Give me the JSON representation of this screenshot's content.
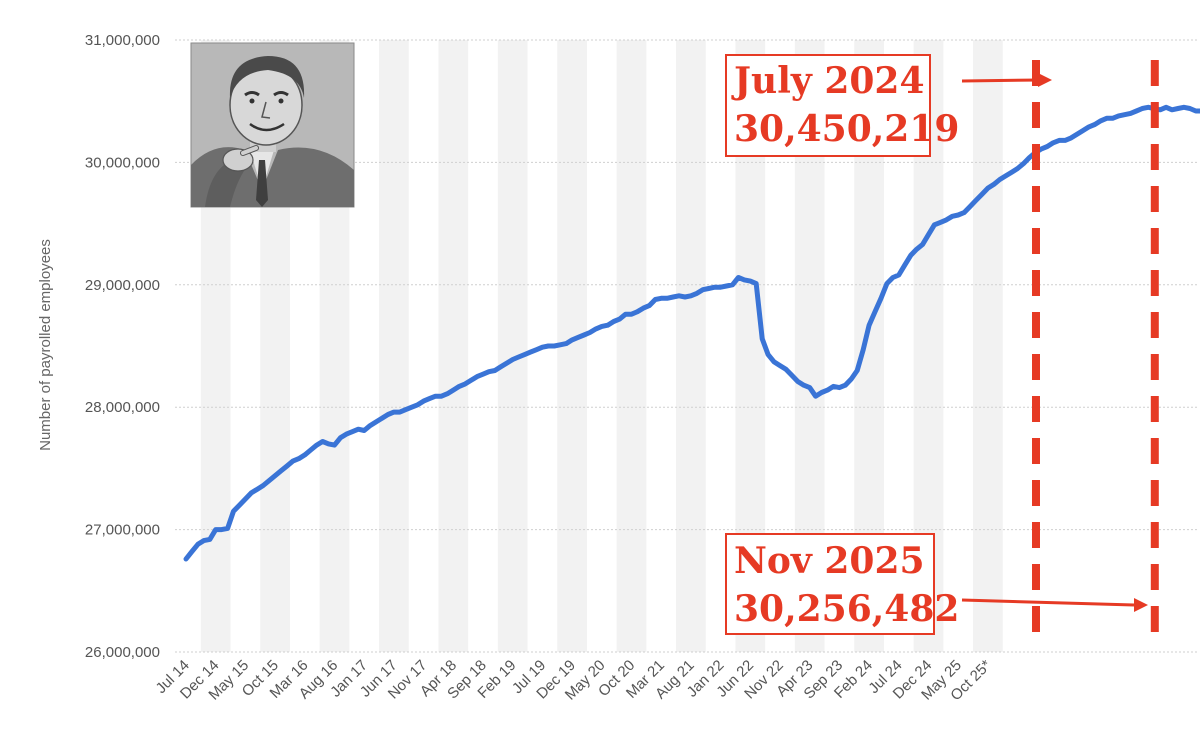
{
  "chart_data": {
    "type": "line",
    "ylabel": "Number of payrolled employees",
    "xlabel": "",
    "ylim": [
      26000000,
      31000000
    ],
    "yticks": [
      26000000,
      27000000,
      28000000,
      29000000,
      30000000,
      31000000
    ],
    "ytick_labels": [
      "26,000,000",
      "27,000,000",
      "28,000,000",
      "29,000,000",
      "30,000,000",
      "31,000,000"
    ],
    "x_start": "Jul 14",
    "x_tick_labels": [
      "Jul 14",
      "Dec 14",
      "May 15",
      "Oct 15",
      "Mar 16",
      "Aug 16",
      "Jan 17",
      "Jun 17",
      "Nov 17",
      "Apr 18",
      "Sep 18",
      "Feb 19",
      "Jul 19",
      "Dec 19",
      "May 20",
      "Oct 20",
      "Mar 21",
      "Aug 21",
      "Jan 22",
      "Jun 22",
      "Nov 22",
      "Apr 23",
      "Sep 23",
      "Feb 24",
      "Jul 24",
      "Dec 24",
      "May 25",
      "Oct 25*"
    ],
    "grid": true,
    "series": [
      {
        "color": "#3a74d6",
        "values": [
          26760000,
          26820000,
          26880000,
          26910000,
          26920000,
          27000000,
          27000000,
          27010000,
          27150000,
          27200000,
          27250000,
          27300000,
          27330000,
          27360000,
          27400000,
          27440000,
          27480000,
          27520000,
          27560000,
          27580000,
          27610000,
          27650000,
          27690000,
          27720000,
          27700000,
          27690000,
          27750000,
          27780000,
          27800000,
          27820000,
          27810000,
          27850000,
          27880000,
          27910000,
          27940000,
          27960000,
          27960000,
          27980000,
          28000000,
          28020000,
          28050000,
          28070000,
          28090000,
          28090000,
          28110000,
          28140000,
          28170000,
          28190000,
          28220000,
          28250000,
          28270000,
          28290000,
          28300000,
          28330000,
          28360000,
          28390000,
          28410000,
          28430000,
          28450000,
          28470000,
          28490000,
          28500000,
          28500000,
          28510000,
          28520000,
          28550000,
          28570000,
          28590000,
          28610000,
          28640000,
          28660000,
          28670000,
          28700000,
          28720000,
          28760000,
          28760000,
          28780000,
          28810000,
          28830000,
          28880000,
          28890000,
          28890000,
          28900000,
          28910000,
          28900000,
          28910000,
          28930000,
          28960000,
          28970000,
          28980000,
          28980000,
          28990000,
          29000000,
          29060000,
          29040000,
          29030000,
          29010000,
          28560000,
          28430000,
          28370000,
          28340000,
          28310000,
          28260000,
          28210000,
          28180000,
          28160000,
          28090000,
          28120000,
          28140000,
          28170000,
          28160000,
          28180000,
          28230000,
          28300000,
          28470000,
          28670000,
          28780000,
          28890000,
          29010000,
          29060000,
          29080000,
          29160000,
          29240000,
          29290000,
          29330000,
          29410000,
          29490000,
          29510000,
          29530000,
          29560000,
          29570000,
          29590000,
          29640000,
          29690000,
          29740000,
          29790000,
          29820000,
          29860000,
          29890000,
          29920000,
          29950000,
          29990000,
          30040000,
          30080000,
          30110000,
          30130000,
          30160000,
          30180000,
          30180000,
          30200000,
          30230000,
          30260000,
          30290000,
          30310000,
          30340000,
          30360000,
          30360000,
          30380000,
          30390000,
          30400000,
          30420000,
          30440000,
          30450219,
          30440000,
          30430000,
          30450000,
          30430000,
          30440000,
          30450000,
          30440000,
          30420000,
          30420000,
          30400000,
          30390000,
          30370000,
          30360000,
          30350000,
          30330000,
          30330000,
          30330000,
          30300000,
          30256482
        ]
      }
    ],
    "annotations": [
      {
        "line1": "July 2024",
        "line2": "30,450,219",
        "color": "#e63a24",
        "marker_index": 120
      },
      {
        "line1": "Nov 2025",
        "line2": "30,256,482",
        "color": "#e63a24",
        "marker_index": 136
      }
    ]
  },
  "image": {
    "description_icon": "man-pointing-sketch"
  }
}
